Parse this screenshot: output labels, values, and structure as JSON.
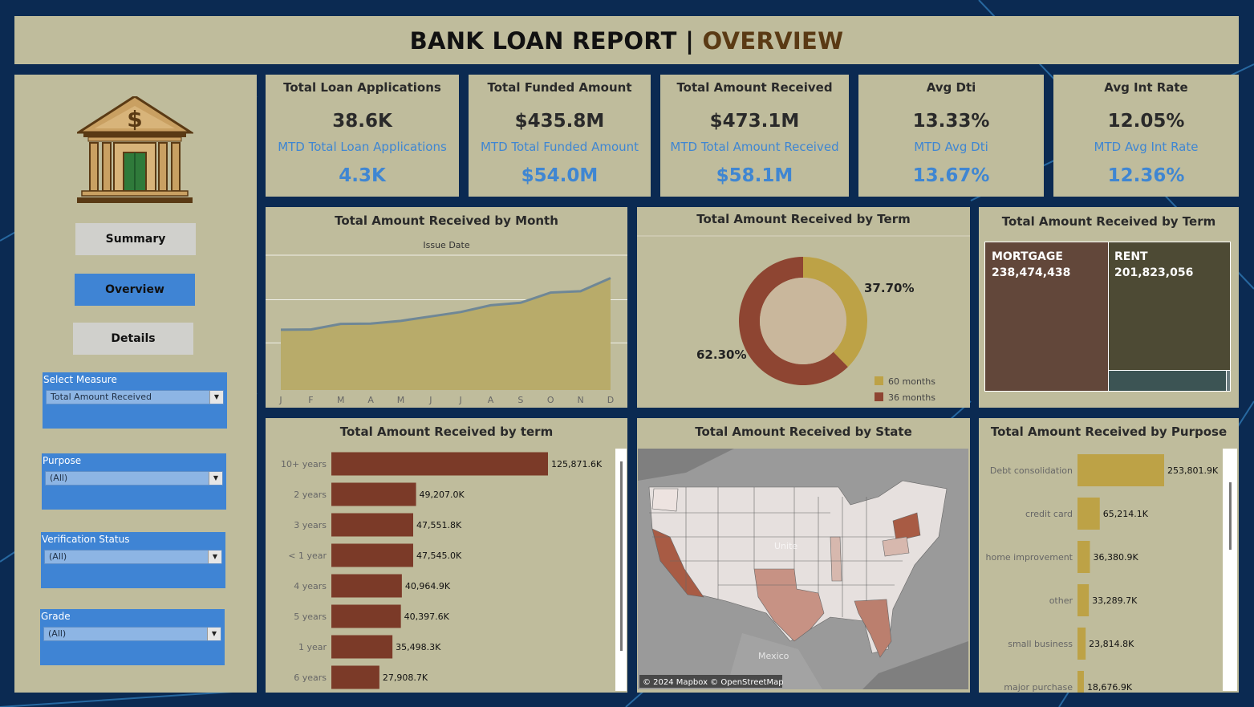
{
  "header": {
    "title_left": "BANK LOAN REPORT",
    "separator": "|",
    "title_right": "OVERVIEW"
  },
  "nav": {
    "summary": "Summary",
    "overview": "Overview",
    "details": "Details"
  },
  "filters": {
    "measure": {
      "label": "Select Measure",
      "value": "Total Amount Received"
    },
    "purpose": {
      "label": "Purpose",
      "value": "(All)"
    },
    "verification": {
      "label": "Verification Status",
      "value": "(All)"
    },
    "grade": {
      "label": "Grade",
      "value": "(All)"
    }
  },
  "kpis": [
    {
      "title": "Total Loan Applications",
      "value": "38.6K",
      "mtd_label": "MTD Total Loan Applications",
      "mtd_value": "4.3K"
    },
    {
      "title": "Total Funded Amount",
      "value": "$435.8M",
      "mtd_label": "MTD Total Funded Amount",
      "mtd_value": "$54.0M"
    },
    {
      "title": "Total Amount Received",
      "value": "$473.1M",
      "mtd_label": "MTD Total Amount Received",
      "mtd_value": "$58.1M"
    },
    {
      "title": "Avg Dti",
      "value": "13.33%",
      "mtd_label": "MTD Avg Dti",
      "mtd_value": "13.67%"
    },
    {
      "title": "Avg Int Rate",
      "value": "12.05%",
      "mtd_label": "MTD Avg Int Rate",
      "mtd_value": "12.36%"
    }
  ],
  "colors": {
    "panel": "#bfbc9c",
    "accent_blue": "#3f84d4",
    "area_fill": "#b8ab6a",
    "area_line": "#6f8796",
    "bar_brown": "#7b3a28",
    "bar_gold": "#bda246",
    "donut_gold": "#bda246",
    "donut_brown": "#8e4532"
  },
  "chart_data": [
    {
      "type": "area",
      "title": "Total Amount Received by Month",
      "xlabel": "Issue Date",
      "categories": [
        "J",
        "F",
        "M",
        "A",
        "M",
        "J",
        "J",
        "A",
        "S",
        "O",
        "N",
        "D"
      ],
      "values": [
        31.3,
        31.4,
        34.3,
        34.5,
        35.9,
        38.2,
        40.5,
        44.0,
        45.3,
        50.6,
        51.3,
        58.1
      ],
      "ylim": [
        0,
        70
      ]
    },
    {
      "type": "pie",
      "title": "Total Amount Received by Term",
      "labels": [
        "60 months",
        "36 months"
      ],
      "values": [
        37.7,
        62.3
      ],
      "value_labels": [
        "37.70%",
        "62.30%"
      ],
      "legend": "bottom-right"
    },
    {
      "type": "treemap",
      "title": "Total Amount Received by Term",
      "items": [
        {
          "label": "MORTGAGE",
          "value": 238474438,
          "value_label": "238,474,438"
        },
        {
          "label": "RENT",
          "value": 201823056,
          "value_label": "201,823,056"
        }
      ],
      "additional_items_values": [
        32000000,
        800000
      ]
    },
    {
      "type": "bar",
      "orientation": "horizontal",
      "title": "Total Amount Received by term",
      "categories": [
        "10+ years",
        "2 years",
        "3 years",
        "< 1 year",
        "4 years",
        "5 years",
        "1 year",
        "6 years"
      ],
      "values": [
        125871.6,
        49207.0,
        47551.8,
        47545.0,
        40964.9,
        40397.6,
        35498.3,
        27908.7
      ],
      "value_labels": [
        "125,871.6K",
        "49,207.0K",
        "47,551.8K",
        "47,545.0K",
        "40,964.9K",
        "40,397.6K",
        "35,498.3K",
        "27,908.7K"
      ]
    },
    {
      "type": "bar",
      "orientation": "horizontal",
      "title": "Total Amount Received by Purpose",
      "categories": [
        "Debt consolidation",
        "credit card",
        "home improvement",
        "other",
        "small business",
        "major purchase"
      ],
      "values": [
        253801.9,
        65214.1,
        36380.9,
        33289.7,
        23814.8,
        18676.9
      ],
      "value_labels": [
        "253,801.9K",
        "65,214.1K",
        "36,380.9K",
        "33,289.7K",
        "23,814.8K",
        "18,676.9K"
      ]
    }
  ],
  "map": {
    "title": "Total Amount Received by State",
    "attribution": "© 2024 Mapbox © OpenStreetMap",
    "label_mexico": "Mexico",
    "label_united": "Unite"
  }
}
